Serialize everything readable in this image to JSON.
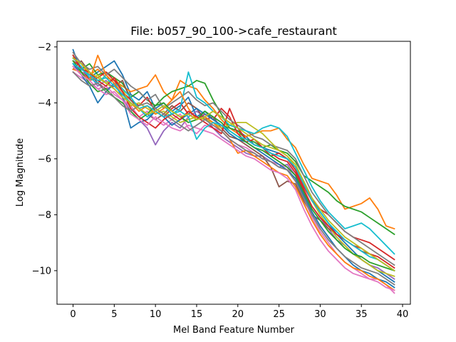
{
  "chart_data": {
    "type": "line",
    "title": "File: b057_90_100->cafe_restaurant",
    "xlabel": "Mel Band Feature Number",
    "ylabel": "Log Magnitude",
    "xlim": [
      -1.95,
      40.95
    ],
    "ylim": [
      -11.2,
      -1.8
    ],
    "xticks": [
      0,
      5,
      10,
      15,
      20,
      25,
      30,
      35,
      40
    ],
    "yticks": [
      -2,
      -4,
      -6,
      -8,
      -10
    ],
    "xtick_labels": [
      "0",
      "5",
      "10",
      "15",
      "20",
      "25",
      "30",
      "35",
      "40"
    ],
    "ytick_labels": [
      "−2",
      "−4",
      "−6",
      "−8",
      "−10"
    ],
    "grid": false,
    "legend": "none",
    "x": [
      0,
      1,
      2,
      3,
      4,
      5,
      6,
      7,
      8,
      9,
      10,
      11,
      12,
      13,
      14,
      15,
      16,
      17,
      18,
      19,
      20,
      21,
      22,
      23,
      24,
      25,
      26,
      27,
      28,
      29,
      30,
      31,
      32,
      33,
      34,
      35,
      36,
      37,
      38,
      39
    ],
    "series": [
      {
        "color": "#1f77b4",
        "values": [
          -2.1,
          -2.9,
          -3.1,
          -2.9,
          -2.7,
          -2.5,
          -3.0,
          -3.7,
          -3.9,
          -3.6,
          -4.2,
          -4.0,
          -4.3,
          -4.1,
          -3.8,
          -4.5,
          -4.3,
          -4.6,
          -4.8,
          -4.9,
          -5.0,
          -5.2,
          -5.5,
          -5.6,
          -5.7,
          -5.8,
          -6.0,
          -6.3,
          -6.8,
          -7.4,
          -7.9,
          -8.3,
          -8.7,
          -9.0,
          -9.3,
          -9.6,
          -9.8,
          -10.0,
          -10.2,
          -10.4
        ]
      },
      {
        "color": "#ff7f0e",
        "values": [
          -2.4,
          -2.6,
          -3.0,
          -2.8,
          -3.1,
          -3.2,
          -3.4,
          -3.6,
          -3.5,
          -3.4,
          -3.0,
          -3.6,
          -3.9,
          -3.2,
          -3.4,
          -3.5,
          -3.9,
          -4.2,
          -4.6,
          -4.9,
          -5.1,
          -5.2,
          -5.1,
          -5.0,
          -5.0,
          -4.9,
          -5.3,
          -5.6,
          -6.2,
          -6.7,
          -6.8,
          -6.9,
          -7.3,
          -7.8,
          -7.7,
          -7.6,
          -7.4,
          -7.8,
          -8.4,
          -8.5
        ]
      },
      {
        "color": "#2ca02c",
        "values": [
          -2.3,
          -2.8,
          -2.6,
          -3.0,
          -2.9,
          -3.1,
          -3.3,
          -3.8,
          -3.6,
          -3.9,
          -4.1,
          -3.8,
          -3.6,
          -3.5,
          -3.4,
          -3.2,
          -3.3,
          -3.9,
          -4.4,
          -4.9,
          -5.0,
          -5.3,
          -5.4,
          -5.6,
          -5.5,
          -5.7,
          -5.8,
          -6.1,
          -6.6,
          -6.8,
          -7.0,
          -7.2,
          -7.5,
          -7.7,
          -7.8,
          -7.9,
          -8.1,
          -8.3,
          -8.5,
          -8.7
        ]
      },
      {
        "color": "#d62728",
        "values": [
          -2.5,
          -2.7,
          -3.2,
          -3.1,
          -2.9,
          -3.2,
          -3.6,
          -3.9,
          -4.1,
          -3.8,
          -4.3,
          -4.5,
          -4.2,
          -4.0,
          -4.4,
          -4.6,
          -4.4,
          -4.6,
          -4.2,
          -4.5,
          -5.1,
          -5.4,
          -5.3,
          -5.6,
          -5.9,
          -5.8,
          -6.0,
          -6.4,
          -7.0,
          -7.5,
          -7.8,
          -8.0,
          -8.3,
          -8.6,
          -8.8,
          -8.9,
          -9.0,
          -9.2,
          -9.4,
          -9.6
        ]
      },
      {
        "color": "#9467bd",
        "values": [
          -2.6,
          -2.9,
          -3.0,
          -3.4,
          -3.2,
          -3.5,
          -3.8,
          -4.3,
          -4.6,
          -4.9,
          -5.5,
          -5.0,
          -4.7,
          -4.9,
          -4.5,
          -4.3,
          -4.5,
          -4.9,
          -5.2,
          -5.4,
          -5.6,
          -5.8,
          -5.9,
          -5.9,
          -6.1,
          -6.3,
          -6.2,
          -6.6,
          -7.1,
          -7.7,
          -8.1,
          -8.5,
          -8.9,
          -9.1,
          -9.4,
          -9.6,
          -9.8,
          -9.9,
          -10.1,
          -10.3
        ]
      },
      {
        "color": "#8c564b",
        "values": [
          -2.8,
          -2.5,
          -2.9,
          -3.3,
          -3.5,
          -3.4,
          -3.2,
          -3.9,
          -4.2,
          -4.4,
          -4.6,
          -4.4,
          -4.1,
          -4.3,
          -4.0,
          -4.2,
          -4.6,
          -4.5,
          -4.9,
          -5.2,
          -5.3,
          -5.5,
          -5.7,
          -5.9,
          -6.3,
          -7.0,
          -6.8,
          -6.9,
          -7.5,
          -8.0,
          -8.2,
          -8.5,
          -8.7,
          -8.9,
          -9.1,
          -9.3,
          -9.4,
          -9.6,
          -9.8,
          -10.0
        ]
      },
      {
        "color": "#e377c2",
        "values": [
          -2.9,
          -3.1,
          -3.3,
          -3.5,
          -3.4,
          -3.7,
          -3.9,
          -4.1,
          -4.5,
          -4.3,
          -4.6,
          -4.8,
          -4.6,
          -4.4,
          -4.9,
          -5.1,
          -4.8,
          -4.9,
          -5.0,
          -5.3,
          -5.5,
          -5.6,
          -5.8,
          -6.0,
          -6.1,
          -6.2,
          -6.3,
          -6.8,
          -7.4,
          -8.1,
          -8.6,
          -9.0,
          -9.4,
          -9.7,
          -9.9,
          -10.1,
          -10.3,
          -10.3,
          -10.5,
          -10.8
        ]
      },
      {
        "color": "#7f7f7f",
        "values": [
          -2.2,
          -2.6,
          -2.8,
          -2.7,
          -3.0,
          -2.8,
          -3.1,
          -3.4,
          -3.6,
          -3.9,
          -3.7,
          -4.2,
          -4.0,
          -3.8,
          -3.6,
          -3.9,
          -4.1,
          -4.0,
          -4.3,
          -4.6,
          -4.8,
          -5.0,
          -5.2,
          -5.3,
          -5.5,
          -5.6,
          -5.7,
          -6.0,
          -6.6,
          -7.2,
          -7.6,
          -8.0,
          -8.3,
          -8.6,
          -8.8,
          -9.0,
          -9.2,
          -9.4,
          -9.6,
          -9.8
        ]
      },
      {
        "color": "#bcbd22",
        "values": [
          -2.7,
          -3.0,
          -3.2,
          -3.0,
          -3.3,
          -3.1,
          -3.5,
          -4.1,
          -4.0,
          -4.2,
          -4.4,
          -4.3,
          -4.5,
          -4.7,
          -4.6,
          -4.5,
          -4.6,
          -4.7,
          -4.9,
          -4.8,
          -4.7,
          -4.7,
          -4.9,
          -5.1,
          -5.4,
          -5.7,
          -5.9,
          -6.3,
          -6.9,
          -7.5,
          -8.0,
          -8.4,
          -8.8,
          -9.1,
          -9.4,
          -9.6,
          -9.8,
          -10.0,
          -10.1,
          -10.2
        ]
      },
      {
        "color": "#17becf",
        "values": [
          -2.4,
          -2.7,
          -3.1,
          -3.3,
          -3.0,
          -3.3,
          -3.5,
          -3.8,
          -4.2,
          -4.5,
          -4.3,
          -4.1,
          -4.4,
          -4.2,
          -2.9,
          -3.8,
          -4.0,
          -4.3,
          -4.5,
          -4.8,
          -4.9,
          -5.0,
          -5.1,
          -4.9,
          -4.8,
          -4.9,
          -5.2,
          -5.8,
          -6.4,
          -7.0,
          -7.5,
          -7.9,
          -8.2,
          -8.5,
          -8.4,
          -8.3,
          -8.5,
          -8.8,
          -9.1,
          -9.4
        ]
      },
      {
        "color": "#1f77b4",
        "values": [
          -2.6,
          -3.0,
          -3.4,
          -4.0,
          -3.6,
          -3.3,
          -3.8,
          -4.9,
          -4.7,
          -4.6,
          -4.3,
          -4.5,
          -4.8,
          -4.6,
          -4.4,
          -4.2,
          -4.4,
          -4.6,
          -4.8,
          -5.1,
          -5.3,
          -5.4,
          -5.6,
          -5.8,
          -6.0,
          -6.2,
          -6.4,
          -6.7,
          -7.3,
          -7.9,
          -8.4,
          -8.8,
          -9.2,
          -9.5,
          -9.8,
          -10.0,
          -10.1,
          -10.3,
          -10.4,
          -10.6
        ]
      },
      {
        "color": "#ff7f0e",
        "values": [
          -2.8,
          -2.9,
          -3.2,
          -2.3,
          -3.0,
          -3.3,
          -3.7,
          -4.0,
          -4.3,
          -4.1,
          -4.4,
          -4.2,
          -3.9,
          -3.6,
          -4.2,
          -4.6,
          -4.5,
          -4.7,
          -5.0,
          -5.3,
          -5.8,
          -5.7,
          -5.9,
          -6.1,
          -6.3,
          -6.5,
          -6.6,
          -7.0,
          -7.6,
          -8.2,
          -8.7,
          -9.1,
          -9.4,
          -9.7,
          -9.9,
          -10.0,
          -10.2,
          -10.3,
          -10.5,
          -10.7
        ]
      },
      {
        "color": "#2ca02c",
        "values": [
          -2.5,
          -2.9,
          -3.3,
          -3.6,
          -3.5,
          -3.8,
          -4.0,
          -4.3,
          -4.6,
          -4.4,
          -4.1,
          -4.0,
          -4.3,
          -4.5,
          -4.7,
          -4.6,
          -4.3,
          -4.5,
          -4.7,
          -5.0,
          -5.2,
          -5.4,
          -5.6,
          -5.7,
          -5.9,
          -6.1,
          -6.3,
          -6.6,
          -7.2,
          -7.8,
          -8.2,
          -8.6,
          -8.9,
          -9.2,
          -9.4,
          -9.5,
          -9.7,
          -9.8,
          -9.9,
          -10.0
        ]
      },
      {
        "color": "#d62728",
        "values": [
          -2.3,
          -2.8,
          -2.9,
          -3.2,
          -3.4,
          -3.1,
          -3.6,
          -4.2,
          -4.5,
          -4.7,
          -4.9,
          -4.6,
          -4.4,
          -4.6,
          -4.3,
          -4.5,
          -4.7,
          -4.9,
          -5.1,
          -4.2,
          -4.9,
          -5.3,
          -5.5,
          -5.6,
          -5.8,
          -6.0,
          -6.1,
          -6.5,
          -7.1,
          -7.7,
          -8.1,
          -8.4,
          -8.7,
          -8.9,
          -9.1,
          -9.2,
          -9.4,
          -9.5,
          -9.7,
          -9.9
        ]
      },
      {
        "color": "#e377c2",
        "values": [
          -2.7,
          -3.0,
          -3.2,
          -3.5,
          -3.7,
          -3.6,
          -3.9,
          -4.4,
          -4.6,
          -4.8,
          -4.5,
          -4.7,
          -4.9,
          -5.0,
          -4.8,
          -4.9,
          -5.0,
          -5.1,
          -5.3,
          -5.5,
          -5.7,
          -5.9,
          -6.0,
          -6.2,
          -6.4,
          -6.5,
          -6.7,
          -7.1,
          -7.8,
          -8.4,
          -8.9,
          -9.3,
          -9.6,
          -9.9,
          -10.1,
          -10.2,
          -10.3,
          -10.4,
          -10.6,
          -10.7
        ]
      },
      {
        "color": "#17becf",
        "values": [
          -2.6,
          -2.8,
          -3.0,
          -3.2,
          -3.1,
          -3.4,
          -3.7,
          -4.0,
          -4.2,
          -4.1,
          -4.3,
          -4.5,
          -4.4,
          -4.3,
          -4.5,
          -5.3,
          -4.9,
          -4.7,
          -4.8,
          -5.0,
          -5.2,
          -5.3,
          -5.5,
          -5.6,
          -5.8,
          -5.9,
          -6.0,
          -6.3,
          -6.9,
          -7.5,
          -7.9,
          -8.3,
          -8.6,
          -8.9,
          -9.1,
          -9.3,
          -9.5,
          -9.6,
          -9.8,
          -10.0
        ]
      },
      {
        "color": "#7f7f7f",
        "values": [
          -2.9,
          -3.2,
          -3.4,
          -3.3,
          -3.6,
          -3.8,
          -4.1,
          -4.3,
          -4.1,
          -4.0,
          -4.2,
          -4.4,
          -4.6,
          -4.8,
          -5.0,
          -4.8,
          -4.6,
          -4.8,
          -5.0,
          -5.3,
          -5.5,
          -5.7,
          -5.8,
          -6.0,
          -6.1,
          -6.3,
          -6.4,
          -6.8,
          -7.4,
          -8.0,
          -8.5,
          -8.9,
          -9.2,
          -9.5,
          -9.7,
          -9.9,
          -10.0,
          -10.1,
          -10.3,
          -10.5
        ]
      },
      {
        "color": "#bcbd22",
        "values": [
          -2.4,
          -2.6,
          -2.9,
          -3.1,
          -3.3,
          -3.5,
          -3.8,
          -4.0,
          -4.2,
          -4.4,
          -4.3,
          -4.1,
          -4.3,
          -4.5,
          -4.4,
          -4.6,
          -4.5,
          -4.3,
          -4.5,
          -4.7,
          -4.9,
          -5.1,
          -5.3,
          -5.5,
          -5.6,
          -5.7,
          -5.9,
          -6.2,
          -6.8,
          -7.4,
          -7.8,
          -8.2,
          -8.5,
          -8.8,
          -9.0,
          -9.2,
          -9.4,
          -9.6,
          -9.8,
          -10.0
        ]
      }
    ]
  }
}
